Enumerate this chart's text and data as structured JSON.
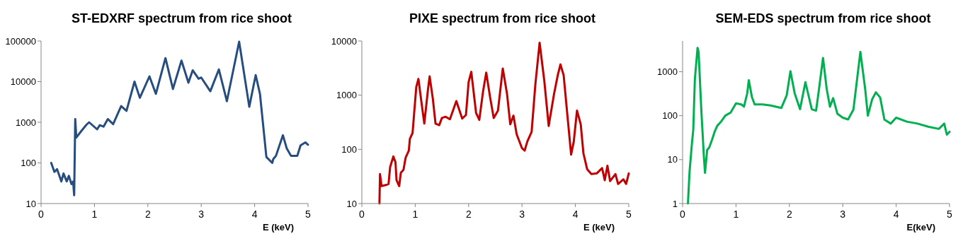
{
  "chart_data": [
    {
      "type": "line",
      "title": "ST-EDXRF spectrum from rice shoot",
      "xlabel": "E (keV)",
      "log": "y",
      "xlim": [
        0,
        5
      ],
      "xticks": [
        0,
        1,
        2,
        3,
        4,
        5
      ],
      "ylim": [
        10,
        100000
      ],
      "yticks": [
        10,
        100,
        1000,
        10000,
        100000
      ],
      "x": [
        0.19,
        0.25,
        0.3,
        0.38,
        0.42,
        0.48,
        0.52,
        0.57,
        0.6,
        0.62,
        0.64,
        0.66,
        0.75,
        0.85,
        0.9,
        1.05,
        1.1,
        1.17,
        1.25,
        1.35,
        1.5,
        1.6,
        1.75,
        1.85,
        2.03,
        2.15,
        2.33,
        2.47,
        2.63,
        2.76,
        2.84,
        2.95,
        3.0,
        3.17,
        3.33,
        3.48,
        3.71,
        3.9,
        4.02,
        4.1,
        4.22,
        4.33,
        4.35,
        4.4,
        4.53,
        4.6,
        4.68,
        4.8,
        4.86,
        4.95,
        5.0
      ],
      "series": [
        {
          "color": "#264d80",
          "values": [
            100,
            60,
            70,
            35,
            55,
            35,
            48,
            30,
            35,
            16,
            1200,
            420,
            600,
            870,
            1000,
            670,
            850,
            780,
            1200,
            900,
            2500,
            1900,
            10000,
            4000,
            13500,
            5000,
            38000,
            6600,
            33000,
            9400,
            19000,
            11800,
            12600,
            5800,
            20000,
            3300,
            96000,
            2400,
            14500,
            5000,
            140,
            100,
            125,
            150,
            480,
            230,
            150,
            150,
            270,
            320,
            280
          ]
        }
      ]
    },
    {
      "type": "line",
      "title": "PIXE spectrum from rice shoot",
      "xlabel": "E (keV)",
      "log": "y",
      "xlim": [
        0,
        5
      ],
      "xticks": [
        0,
        1,
        2,
        3,
        4,
        5
      ],
      "ylim": [
        10,
        10000
      ],
      "yticks": [
        10,
        100,
        1000,
        10000
      ],
      "x": [
        0.33,
        0.34,
        0.37,
        0.45,
        0.5,
        0.53,
        0.59,
        0.63,
        0.65,
        0.7,
        0.73,
        0.78,
        0.82,
        0.88,
        0.9,
        0.95,
        0.97,
        1.02,
        1.06,
        1.12,
        1.17,
        1.24,
        1.27,
        1.33,
        1.38,
        1.45,
        1.5,
        1.57,
        1.65,
        1.77,
        1.88,
        1.95,
        2.0,
        2.05,
        2.14,
        2.2,
        2.27,
        2.33,
        2.4,
        2.47,
        2.55,
        2.64,
        2.72,
        2.78,
        2.84,
        2.9,
        3.0,
        3.05,
        3.1,
        3.18,
        3.25,
        3.33,
        3.42,
        3.5,
        3.6,
        3.67,
        3.72,
        3.78,
        3.85,
        3.92,
        3.97,
        4.03,
        4.1,
        4.15,
        4.22,
        4.3,
        4.4,
        4.5,
        4.55,
        4.6,
        4.65,
        4.75,
        4.8,
        4.9,
        4.95,
        5.0
      ],
      "series": [
        {
          "color": "#c00000",
          "values": [
            10,
            35,
            21,
            22,
            23,
            47,
            74,
            58,
            27,
            21,
            37,
            42,
            70,
            95,
            157,
            200,
            350,
            1420,
            2000,
            700,
            300,
            1300,
            2220,
            860,
            300,
            280,
            380,
            400,
            360,
            780,
            370,
            430,
            1750,
            2700,
            470,
            350,
            1160,
            2600,
            950,
            380,
            520,
            3100,
            1050,
            290,
            420,
            190,
            105,
            95,
            140,
            210,
            1570,
            9300,
            1750,
            270,
            1050,
            2340,
            3700,
            2340,
            430,
            80,
            140,
            520,
            290,
            85,
            43,
            35,
            36,
            45,
            27,
            50,
            26,
            35,
            23,
            28,
            23,
            36
          ]
        }
      ]
    },
    {
      "type": "line",
      "title": "SEM-EDS spectrum from rice shoot",
      "xlabel": "E(keV)",
      "log": "y",
      "xlim": [
        0,
        5
      ],
      "xticks": [
        0,
        1,
        2,
        3,
        4,
        5
      ],
      "ylim": [
        1,
        5000
      ],
      "yticks": [
        1,
        10,
        100,
        1000
      ],
      "x": [
        0.1,
        0.13,
        0.17,
        0.2,
        0.23,
        0.28,
        0.3,
        0.35,
        0.4,
        0.42,
        0.46,
        0.5,
        0.55,
        0.6,
        0.65,
        0.72,
        0.8,
        0.9,
        1.0,
        1.1,
        1.15,
        1.21,
        1.24,
        1.3,
        1.35,
        1.5,
        1.65,
        1.85,
        1.95,
        2.02,
        2.1,
        2.2,
        2.3,
        2.35,
        2.42,
        2.5,
        2.55,
        2.63,
        2.7,
        2.76,
        2.82,
        2.9,
        3.0,
        3.1,
        3.2,
        3.33,
        3.42,
        3.47,
        3.55,
        3.62,
        3.7,
        3.78,
        3.9,
        4.0,
        4.2,
        4.4,
        4.6,
        4.8,
        4.9,
        4.95,
        5.0
      ],
      "series": [
        {
          "color": "#00b050",
          "values": [
            1,
            5.2,
            20,
            48,
            675,
            3500,
            2800,
            138,
            11,
            5,
            16.5,
            19,
            28,
            43,
            59,
            73,
            100,
            118,
            190,
            180,
            160,
            320,
            640,
            260,
            180,
            180,
            170,
            150,
            290,
            1030,
            320,
            140,
            580,
            320,
            140,
            130,
            360,
            2060,
            400,
            160,
            250,
            110,
            90,
            82,
            138,
            2830,
            400,
            100,
            235,
            340,
            260,
            81,
            66,
            90,
            73,
            66,
            56,
            50,
            66,
            37,
            43
          ]
        }
      ]
    }
  ]
}
